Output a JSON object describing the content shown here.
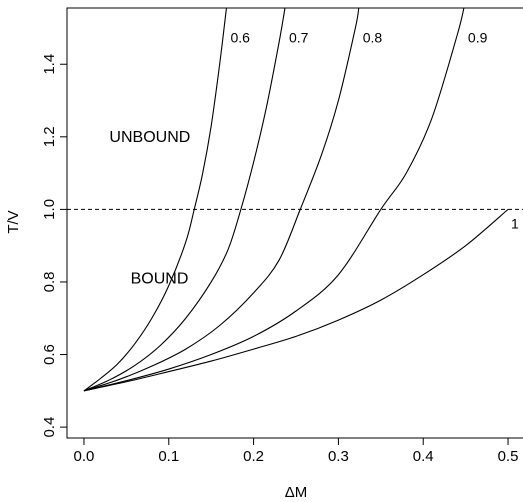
{
  "chart_data": {
    "type": "line",
    "xlabel": "ΔM",
    "ylabel": "T/V",
    "xlim": [
      -0.02,
      0.52
    ],
    "ylim": [
      0.37,
      1.555
    ],
    "xticks": [
      0.0,
      0.1,
      0.2,
      0.3,
      0.4,
      0.5
    ],
    "xtick_labels": [
      "0.0",
      "0.1",
      "0.2",
      "0.3",
      "0.4",
      "0.5"
    ],
    "yticks": [
      0.4,
      0.6,
      0.8,
      1.0,
      1.2,
      1.4
    ],
    "ytick_labels": [
      "0.4",
      "0.6",
      "0.8",
      "1.0",
      "1.2",
      "1.4"
    ],
    "grid": false,
    "series": [
      {
        "name": "0.6",
        "x": [
          0,
          0.02,
          0.04,
          0.06,
          0.08,
          0.1,
          0.12,
          0.13,
          0.14,
          0.15,
          0.16,
          0.168
        ],
        "y": [
          0.5,
          0.535,
          0.575,
          0.63,
          0.7,
          0.79,
          0.91,
          1.0,
          1.1,
          1.23,
          1.4,
          1.555
        ]
      },
      {
        "name": "0.7",
        "x": [
          0,
          0.03,
          0.06,
          0.09,
          0.12,
          0.15,
          0.17,
          0.185,
          0.2,
          0.215,
          0.23,
          0.237
        ],
        "y": [
          0.5,
          0.53,
          0.57,
          0.625,
          0.7,
          0.8,
          0.89,
          1.0,
          1.13,
          1.28,
          1.46,
          1.555
        ]
      },
      {
        "name": "0.8",
        "x": [
          0,
          0.04,
          0.08,
          0.12,
          0.16,
          0.2,
          0.23,
          0.255,
          0.28,
          0.3,
          0.32,
          0.324
        ],
        "y": [
          0.5,
          0.53,
          0.568,
          0.615,
          0.68,
          0.77,
          0.86,
          1.0,
          1.15,
          1.3,
          1.5,
          1.555
        ]
      },
      {
        "name": "0.9",
        "x": [
          0,
          0.05,
          0.1,
          0.15,
          0.2,
          0.25,
          0.3,
          0.35,
          0.38,
          0.41,
          0.44,
          0.448
        ],
        "y": [
          0.5,
          0.528,
          0.56,
          0.6,
          0.65,
          0.72,
          0.82,
          1.0,
          1.1,
          1.25,
          1.48,
          1.555
        ]
      },
      {
        "name": "1",
        "x": [
          0,
          0.05,
          0.1,
          0.15,
          0.2,
          0.25,
          0.3,
          0.35,
          0.4,
          0.45,
          0.5
        ],
        "y": [
          0.5,
          0.525,
          0.553,
          0.582,
          0.615,
          0.65,
          0.695,
          0.75,
          0.82,
          0.9,
          1.0
        ]
      }
    ],
    "reference_line": {
      "y": 1.0,
      "style": "dashed"
    },
    "annotations": [
      {
        "text": "UNBOUND",
        "x": 0.03,
        "y": 1.2
      },
      {
        "text": "BOUND",
        "x": 0.055,
        "y": 0.81
      }
    ]
  }
}
